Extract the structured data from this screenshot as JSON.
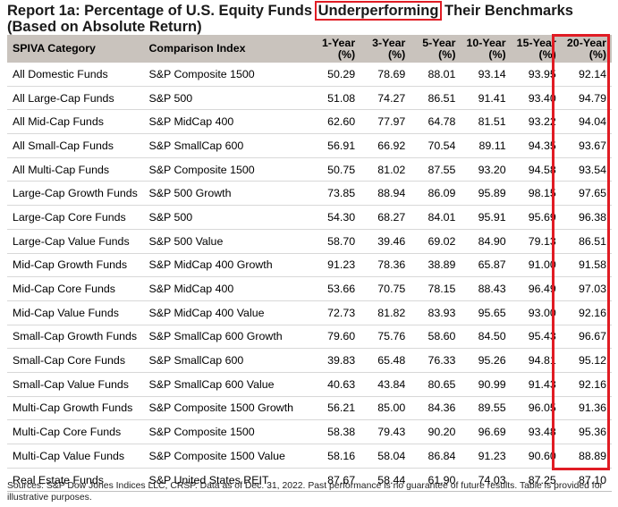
{
  "title": {
    "before": "Report 1a: Percentage of U.S. Equity Funds ",
    "highlight": "Underperforming",
    "after": " Their Benchmarks (Based on Absolute Return)"
  },
  "table": {
    "headers": {
      "category": "SPIVA Category",
      "index": "Comparison Index",
      "y1": [
        "1-Year",
        "(%)"
      ],
      "y3": [
        "3-Year",
        "(%)"
      ],
      "y5": [
        "5-Year",
        "(%)"
      ],
      "y10": [
        "10-Year",
        "(%)"
      ],
      "y15": [
        "15-Year",
        "(%)"
      ],
      "y20": [
        "20-Year",
        "(%)"
      ]
    },
    "rows": [
      [
        "All Domestic Funds",
        "S&P Composite 1500",
        "50.29",
        "78.69",
        "88.01",
        "93.14",
        "93.95",
        "92.14"
      ],
      [
        "All Large-Cap Funds",
        "S&P 500",
        "51.08",
        "74.27",
        "86.51",
        "91.41",
        "93.40",
        "94.79"
      ],
      [
        "All Mid-Cap Funds",
        "S&P MidCap 400",
        "62.60",
        "77.97",
        "64.78",
        "81.51",
        "93.22",
        "94.04"
      ],
      [
        "All Small-Cap Funds",
        "S&P SmallCap 600",
        "56.91",
        "66.92",
        "70.54",
        "89.11",
        "94.35",
        "93.67"
      ],
      [
        "All Multi-Cap Funds",
        "S&P Composite 1500",
        "50.75",
        "81.02",
        "87.55",
        "93.20",
        "94.58",
        "93.54"
      ],
      [
        "Large-Cap Growth Funds",
        "S&P 500 Growth",
        "73.85",
        "88.94",
        "86.09",
        "95.89",
        "98.15",
        "97.65"
      ],
      [
        "Large-Cap Core Funds",
        "S&P 500",
        "54.30",
        "68.27",
        "84.01",
        "95.91",
        "95.69",
        "96.38"
      ],
      [
        "Large-Cap Value Funds",
        "S&P 500 Value",
        "58.70",
        "39.46",
        "69.02",
        "84.90",
        "79.13",
        "86.51"
      ],
      [
        "Mid-Cap Growth Funds",
        "S&P MidCap 400 Growth",
        "91.23",
        "78.36",
        "38.89",
        "65.87",
        "91.00",
        "91.58"
      ],
      [
        "Mid-Cap Core Funds",
        "S&P MidCap 400",
        "53.66",
        "70.75",
        "78.15",
        "88.43",
        "96.49",
        "97.03"
      ],
      [
        "Mid-Cap Value Funds",
        "S&P MidCap 400 Value",
        "72.73",
        "81.82",
        "83.93",
        "95.65",
        "93.00",
        "92.16"
      ],
      [
        "Small-Cap Growth Funds",
        "S&P SmallCap 600 Growth",
        "79.60",
        "75.76",
        "58.60",
        "84.50",
        "95.43",
        "96.67"
      ],
      [
        "Small-Cap Core Funds",
        "S&P SmallCap 600",
        "39.83",
        "65.48",
        "76.33",
        "95.26",
        "94.81",
        "95.12"
      ],
      [
        "Small-Cap Value Funds",
        "S&P SmallCap 600 Value",
        "40.63",
        "43.84",
        "80.65",
        "90.99",
        "91.43",
        "92.16"
      ],
      [
        "Multi-Cap Growth Funds",
        "S&P Composite 1500 Growth",
        "56.21",
        "85.00",
        "84.36",
        "89.55",
        "96.05",
        "91.36"
      ],
      [
        "Multi-Cap Core Funds",
        "S&P Composite 1500",
        "58.38",
        "79.43",
        "90.20",
        "96.69",
        "93.48",
        "95.36"
      ],
      [
        "Multi-Cap Value Funds",
        "S&P Composite 1500 Value",
        "58.16",
        "58.04",
        "86.84",
        "91.23",
        "90.60",
        "88.89"
      ],
      [
        "Real Estate Funds",
        "S&P United States REIT",
        "87.67",
        "58.44",
        "61.90",
        "74.03",
        "87.25",
        "87.10"
      ]
    ]
  },
  "footer": "Sources: S&P Dow Jones Indices LLC, CRSP.  Data as of Dec. 31, 2022.  Past performance is no guarantee of future results.  Table is provided for illustrative purposes.",
  "colors": {
    "header_bg": "#c9c3bd",
    "highlight_red": "#e01c24"
  }
}
